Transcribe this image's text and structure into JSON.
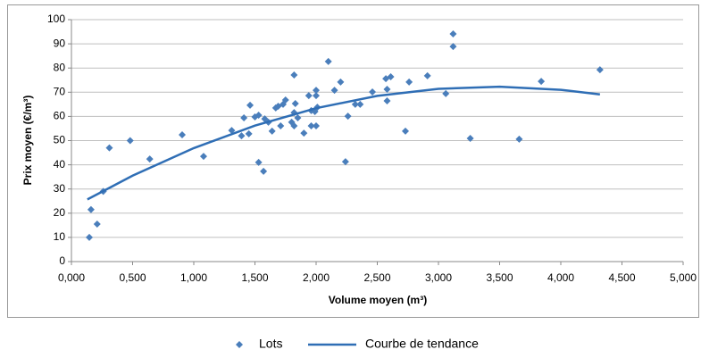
{
  "chart_data": {
    "type": "scatter",
    "x_label": "Volume moyen (m³)",
    "y_label": "Prix moyen (€/m³)",
    "xlim": [
      0,
      5
    ],
    "ylim": [
      0,
      100
    ],
    "xticks": [
      {
        "value": 0,
        "label": "0,000"
      },
      {
        "value": 0.5,
        "label": "0,500"
      },
      {
        "value": 1,
        "label": "1,000"
      },
      {
        "value": 1.5,
        "label": "1,500"
      },
      {
        "value": 2,
        "label": "2,000"
      },
      {
        "value": 2.5,
        "label": "2,500"
      },
      {
        "value": 3,
        "label": "3,000"
      },
      {
        "value": 3.5,
        "label": "3,500"
      },
      {
        "value": 4,
        "label": "4,000"
      },
      {
        "value": 4.5,
        "label": "4,500"
      },
      {
        "value": 5,
        "label": "5,000"
      }
    ],
    "yticks": [
      0,
      10,
      20,
      30,
      40,
      50,
      60,
      70,
      80,
      90,
      100
    ],
    "grid": true,
    "legend": "bottom",
    "series": [
      {
        "name": "Lots",
        "color": "#4a7ebb",
        "style": "markers",
        "x": [
          0.146,
          0.16,
          0.21,
          0.26,
          0.31,
          0.48,
          0.64,
          0.905,
          1.08,
          1.31,
          1.39,
          1.41,
          1.45,
          1.46,
          1.5,
          1.53,
          1.53,
          1.57,
          1.58,
          1.61,
          1.64,
          1.67,
          1.69,
          1.71,
          1.73,
          1.75,
          1.8,
          1.82,
          1.82,
          1.82,
          1.83,
          1.85,
          1.9,
          1.94,
          1.96,
          1.96,
          1.99,
          2.0,
          2.0,
          2.0,
          2.01,
          2.1,
          2.15,
          2.2,
          2.24,
          2.26,
          2.32,
          2.36,
          2.46,
          2.57,
          2.58,
          2.58,
          2.61,
          2.73,
          2.76,
          2.91,
          3.06,
          3.12,
          3.12,
          3.26,
          3.66,
          3.84,
          4.32
        ],
        "values": [
          10,
          21.5,
          15.5,
          29,
          47,
          50,
          42.4,
          52.4,
          43.5,
          54.2,
          52,
          59.4,
          52.8,
          64.6,
          59.8,
          60.5,
          41,
          37.3,
          59,
          57.6,
          53.9,
          63.5,
          64.2,
          56.1,
          65,
          66.8,
          57.6,
          61.6,
          77.1,
          56.1,
          65.3,
          59.4,
          53.1,
          68.6,
          62.4,
          56.1,
          62,
          70.8,
          68.6,
          56.1,
          63.8,
          82.7,
          70.8,
          74.2,
          41.3,
          60.1,
          65,
          65,
          70.1,
          75.6,
          66.4,
          71.2,
          76.4,
          53.9,
          74.2,
          76.8,
          69.4,
          88.9,
          94.1,
          50.9,
          50.6,
          74.5,
          79.3
        ]
      },
      {
        "name": "Courbe de tendance",
        "color": "#2f6eb5",
        "style": "line",
        "x": [
          0.13,
          0.5,
          1,
          1.5,
          2,
          2.5,
          3,
          3.5,
          4,
          4.32
        ],
        "values": [
          25.7,
          35.5,
          46.9,
          56.2,
          63.4,
          68.5,
          71.4,
          72.3,
          71.0,
          69.1
        ]
      }
    ]
  }
}
